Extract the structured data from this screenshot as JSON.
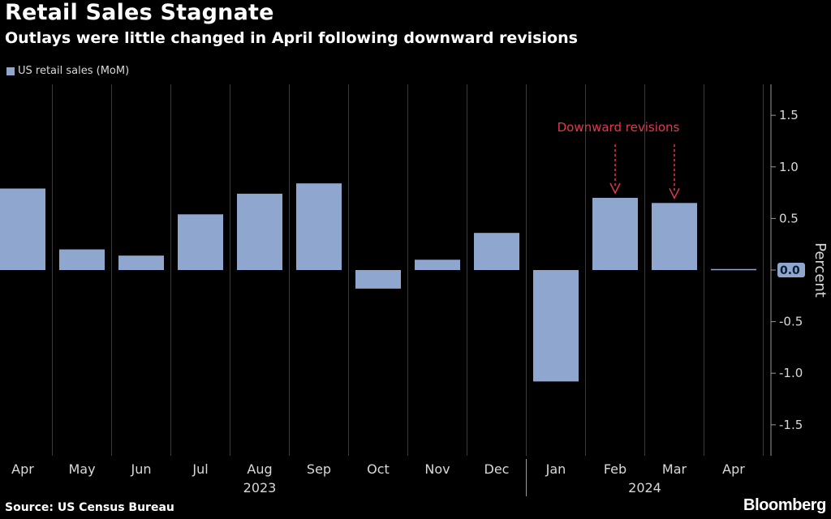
{
  "header": {
    "title": "Retail Sales Stagnate",
    "subtitle": "Outlays were little changed in April following downward revisions"
  },
  "legend": {
    "label": "US retail sales (MoM)"
  },
  "footer": {
    "source": "Source: US Census Bureau",
    "brand": "Bloomberg"
  },
  "colors": {
    "background": "#000000",
    "bar": "#8fa6cf",
    "annotation": "#e0394f",
    "grid": "#3a3a3a",
    "zero_label_bg": "#8fa6cf"
  },
  "chart_data": {
    "type": "bar",
    "categories": [
      "Apr",
      "May",
      "Jun",
      "Jul",
      "Aug",
      "Sep",
      "Oct",
      "Nov",
      "Dec",
      "Jan",
      "Feb",
      "Mar",
      "Apr"
    ],
    "year_labels": [
      {
        "label": "2023",
        "from": 0,
        "to": 8
      },
      {
        "label": "2024",
        "from": 9,
        "to": 12
      }
    ],
    "series": [
      {
        "name": "US retail sales (MoM)",
        "values": [
          0.79,
          0.2,
          0.14,
          0.54,
          0.74,
          0.84,
          -0.18,
          0.1,
          0.36,
          -1.08,
          0.7,
          0.65,
          0.01
        ]
      }
    ],
    "ylabel": "Percent",
    "ylim": [
      -1.8,
      1.8
    ],
    "yticks": [
      -1.5,
      -1.0,
      -0.5,
      0.0,
      0.5,
      1.0,
      1.5
    ],
    "ytick_labels": [
      "-1.5",
      "-1.0",
      "-0.5",
      "0.0",
      "0.5",
      "1.0",
      "1.5"
    ],
    "y_axis_side": "right",
    "grid": "vertical",
    "annotation": {
      "text": "Downward revisions",
      "targets": [
        10,
        11
      ]
    }
  }
}
